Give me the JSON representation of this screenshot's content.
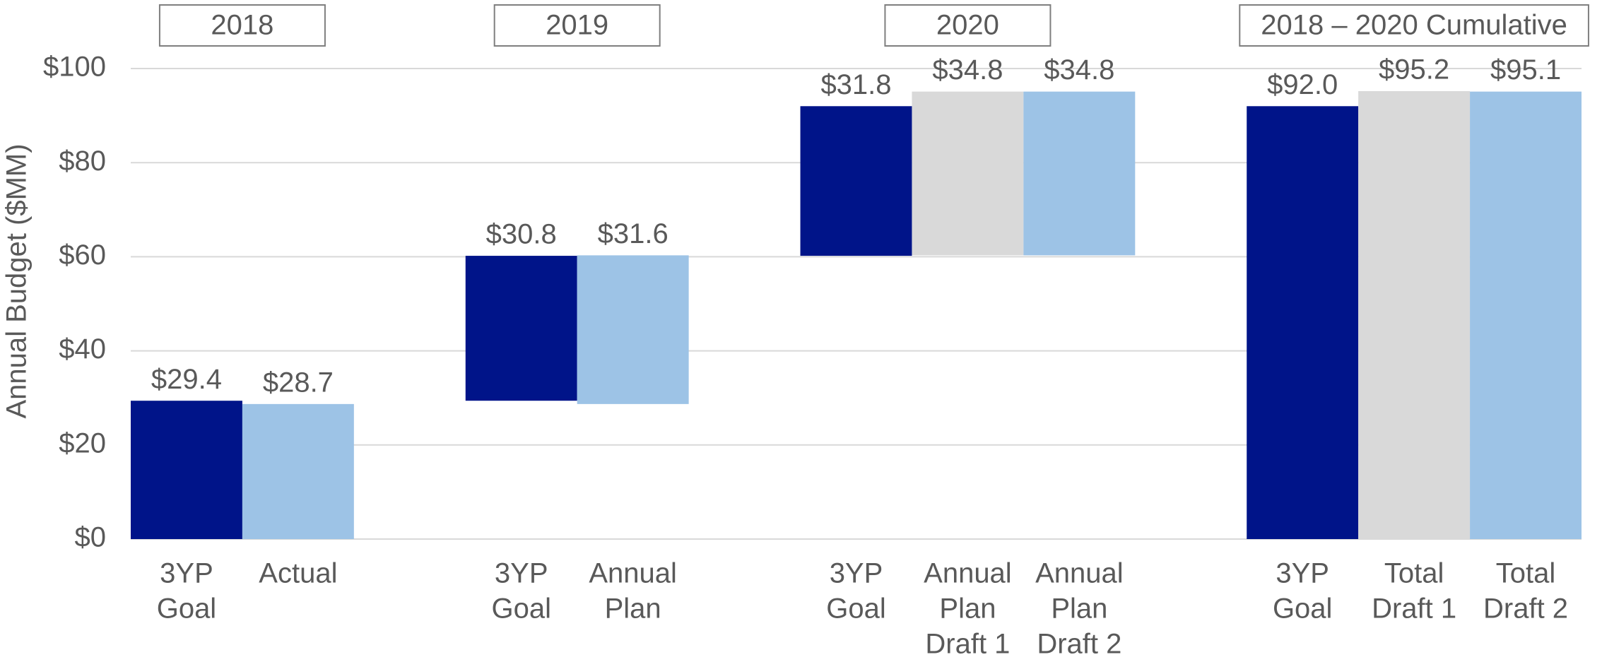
{
  "chart_data": {
    "type": "waterfall",
    "y_label": "Annual Budget ($MM)",
    "ylim": [
      0,
      100
    ],
    "yticks": [
      {
        "value": 0,
        "label": "$0"
      },
      {
        "value": 20,
        "label": "$20"
      },
      {
        "value": 40,
        "label": "$40"
      },
      {
        "value": 60,
        "label": "$60"
      },
      {
        "value": 80,
        "label": "$80"
      },
      {
        "value": 100,
        "label": "$100"
      }
    ],
    "grid": true,
    "groups": [
      {
        "title": "2018",
        "categories": [
          [
            "3YP",
            "Goal"
          ],
          [
            "Actual"
          ]
        ],
        "values": [
          29.4,
          28.7
        ],
        "value_labels": [
          "$29.4",
          "$28.7"
        ],
        "colors": [
          "#001489",
          "#9dc3e6"
        ]
      },
      {
        "title": "2019",
        "categories": [
          [
            "3YP",
            "Goal"
          ],
          [
            "Annual",
            "Plan"
          ]
        ],
        "values": [
          30.8,
          31.6
        ],
        "value_labels": [
          "$30.8",
          "$31.6"
        ],
        "colors": [
          "#001489",
          "#9dc3e6"
        ]
      },
      {
        "title": "2020",
        "categories": [
          [
            "3YP",
            "Goal"
          ],
          [
            "Annual",
            "Plan",
            "Draft 1"
          ],
          [
            "Annual",
            "Plan",
            "Draft 2"
          ]
        ],
        "values": [
          31.8,
          34.8,
          34.8
        ],
        "value_labels": [
          "$31.8",
          "$34.8",
          "$34.8"
        ],
        "colors": [
          "#001489",
          "#d9d9d9",
          "#9dc3e6"
        ]
      },
      {
        "title": "2018 – 2020 Cumulative",
        "categories": [
          [
            "3YP",
            "Goal"
          ],
          [
            "Total",
            "Draft 1"
          ],
          [
            "Total",
            "Draft 2"
          ]
        ],
        "values": [
          92.0,
          95.2,
          95.1
        ],
        "value_labels": [
          "$92.0",
          "$95.2",
          "$95.1"
        ],
        "colors": [
          "#001489",
          "#d9d9d9",
          "#9dc3e6"
        ]
      }
    ]
  }
}
